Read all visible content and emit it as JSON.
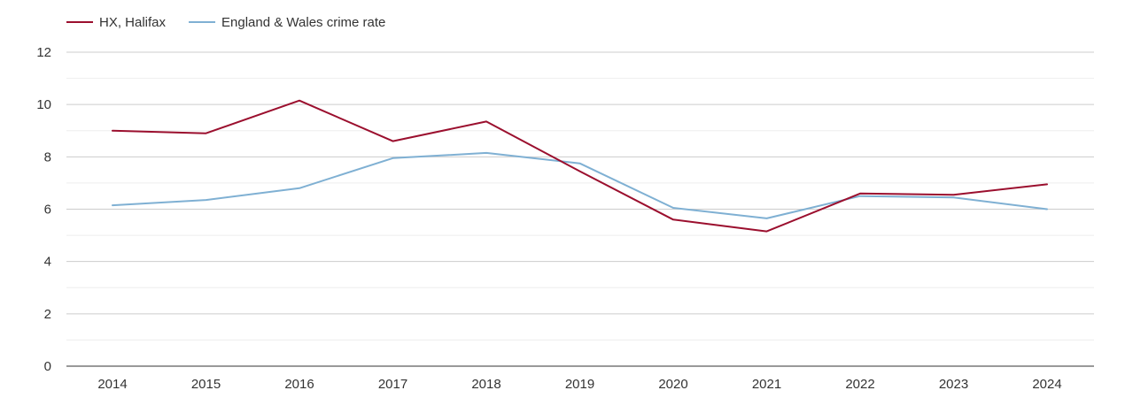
{
  "chart_data": {
    "type": "line",
    "title": "",
    "xlabel": "",
    "ylabel": "",
    "categories": [
      "2014",
      "2015",
      "2016",
      "2017",
      "2018",
      "2019",
      "2020",
      "2021",
      "2022",
      "2023",
      "2024"
    ],
    "ylim": [
      0,
      12
    ],
    "yticks": [
      "0",
      "2",
      "4",
      "6",
      "8",
      "10",
      "12"
    ],
    "grid": true,
    "legend_position": "top-left",
    "series": [
      {
        "name": "HX, Halifax",
        "color": "#9b0f2e",
        "values": [
          9.0,
          8.9,
          10.15,
          8.6,
          9.35,
          7.45,
          5.6,
          5.15,
          6.6,
          6.55,
          6.95
        ]
      },
      {
        "name": "England & Wales crime rate",
        "color": "#7fb0d3",
        "values": [
          6.15,
          6.35,
          6.8,
          7.95,
          8.15,
          7.75,
          6.05,
          5.65,
          6.5,
          6.45,
          6.0
        ]
      }
    ]
  }
}
